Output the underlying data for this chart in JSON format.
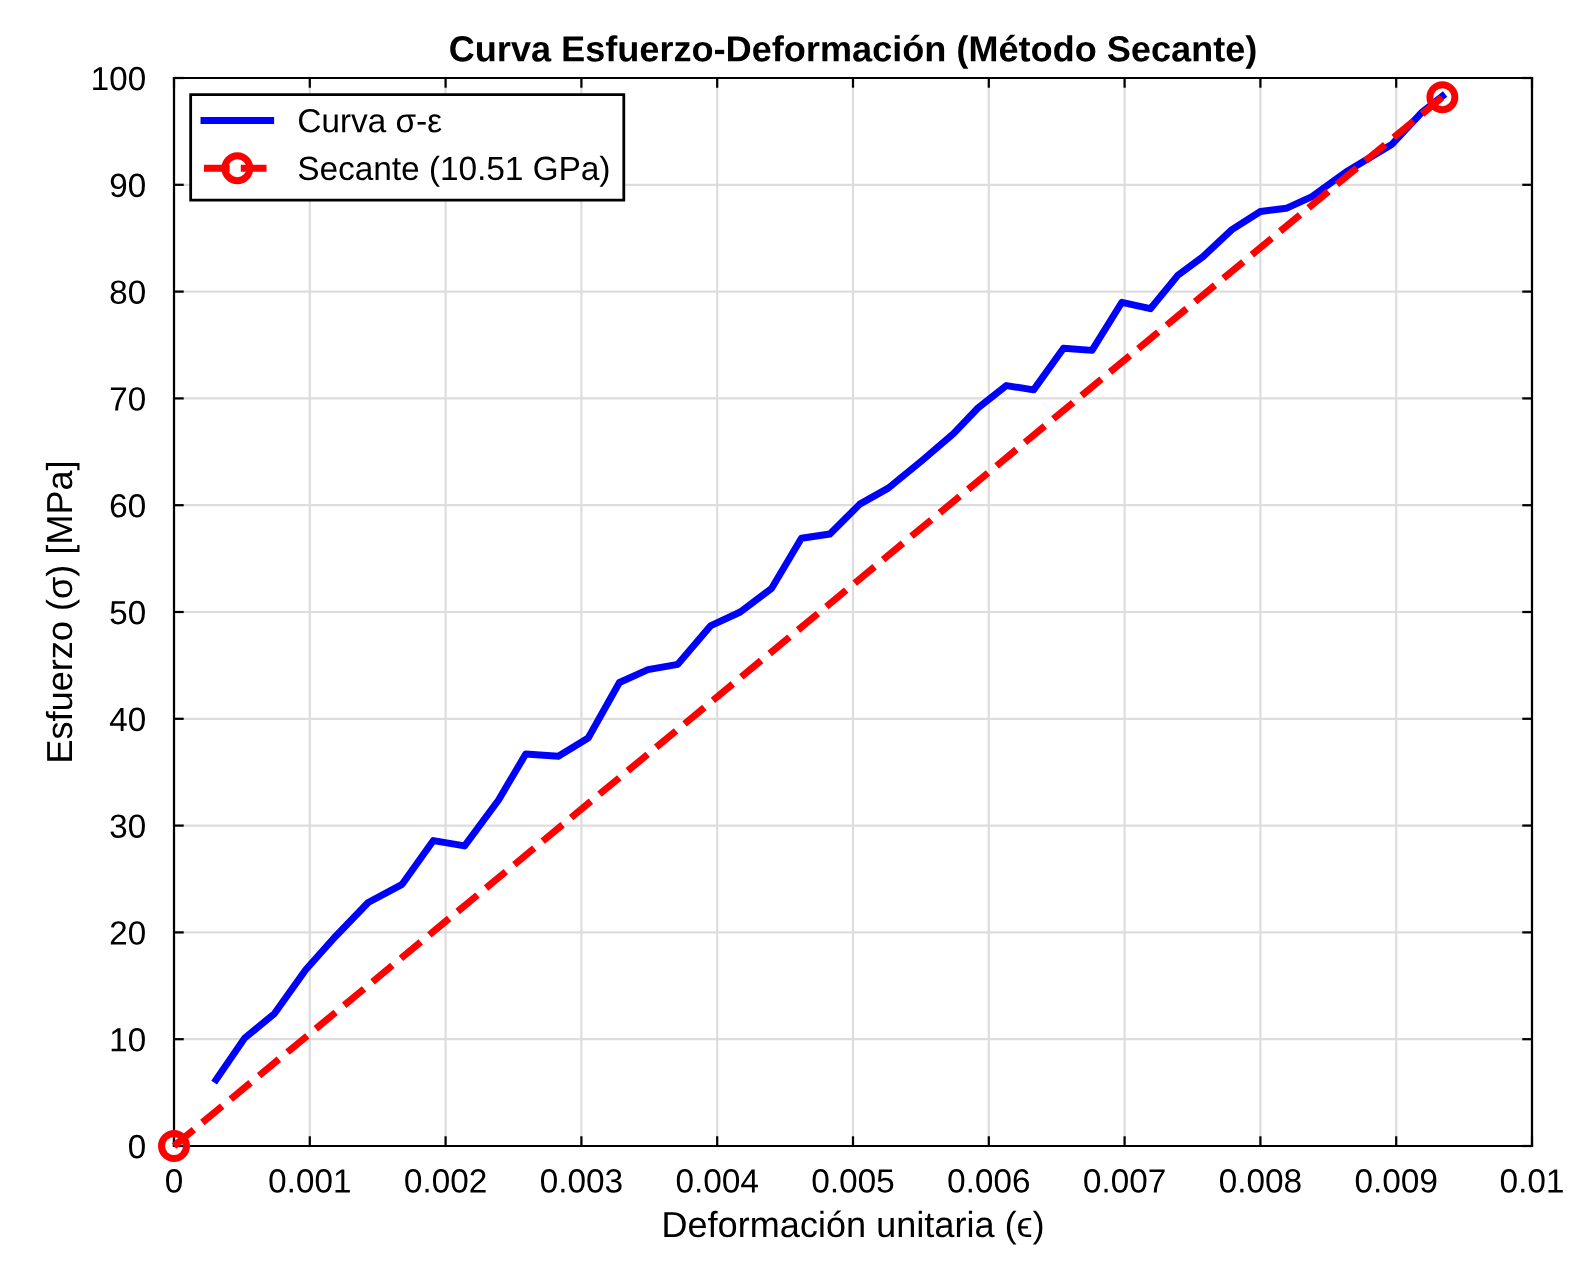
{
  "chart_data": {
    "type": "line",
    "title": "Curva Esfuerzo-Deformación (Método Secante)",
    "xlabel": "Deformación unitaria (ϵ)",
    "ylabel": "Esfuerzo (σ) [MPa]",
    "xlim": [
      0,
      0.01
    ],
    "ylim": [
      0,
      100
    ],
    "xticks": [
      0,
      0.001,
      0.002,
      0.003,
      0.004,
      0.005,
      0.006,
      0.007,
      0.008,
      0.009,
      0.01
    ],
    "yticks": [
      0,
      10,
      20,
      30,
      40,
      50,
      60,
      70,
      80,
      90,
      100
    ],
    "grid": true,
    "legend": "top left",
    "series": [
      {
        "name": "Curva σ-ε",
        "color": "#0000ff",
        "marker": "none",
        "line_style": "solid",
        "x": [
          0.00031,
          0.00052,
          0.00074,
          0.00097,
          0.00118,
          0.00143,
          0.00168,
          0.00191,
          0.00214,
          0.00239,
          0.00259,
          0.00283,
          0.00305,
          0.00328,
          0.00349,
          0.00371,
          0.00395,
          0.00417,
          0.0044,
          0.00462,
          0.00483,
          0.00505,
          0.00526,
          0.00551,
          0.00574,
          0.00592,
          0.00613,
          0.00633,
          0.00655,
          0.00676,
          0.00698,
          0.00719,
          0.00739,
          0.00758,
          0.00779,
          0.008,
          0.00819,
          0.00838,
          0.00863,
          0.00897,
          0.00919,
          0.00934
        ],
        "values": [
          6.2,
          10.1,
          12.4,
          16.5,
          19.5,
          22.8,
          24.5,
          28.6,
          28.1,
          32.4,
          36.7,
          36.5,
          38.2,
          43.4,
          44.6,
          45.1,
          48.7,
          50.0,
          52.2,
          56.9,
          57.3,
          60.1,
          61.6,
          64.2,
          66.7,
          69.1,
          71.2,
          70.8,
          74.7,
          74.5,
          79.0,
          78.4,
          81.5,
          83.3,
          85.8,
          87.5,
          87.8,
          88.9,
          91.2,
          93.8,
          96.8,
          98.3
        ]
      },
      {
        "name": "Secante (10.51 GPa)",
        "color": "#ff0000",
        "marker": "circle",
        "line_style": "dashed",
        "x": [
          0,
          0.00934
        ],
        "values": [
          0,
          98.2
        ]
      }
    ]
  }
}
